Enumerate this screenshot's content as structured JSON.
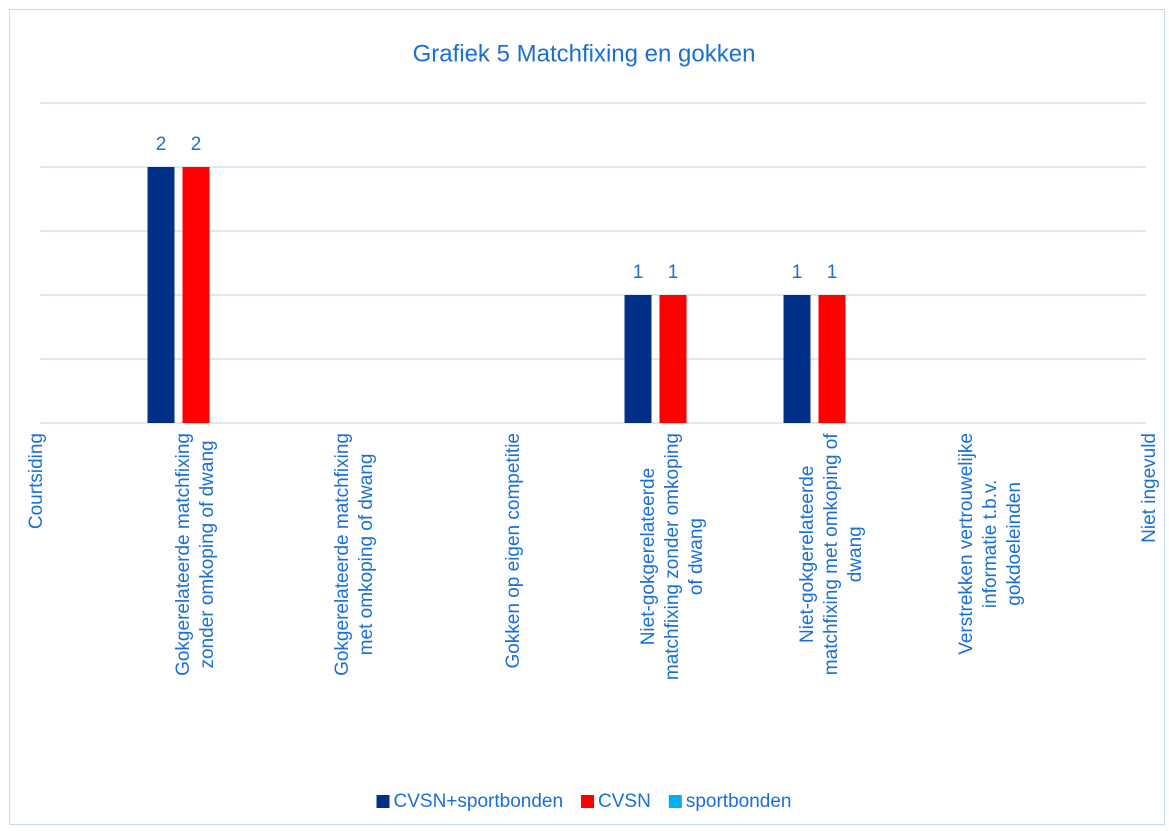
{
  "chart_data": {
    "type": "bar",
    "title": "Grafiek 5 Matchfixing en gokken",
    "categories": [
      "Courtsiding",
      "Gokgerelateerde matchfixing zonder omkoping of dwang",
      "Gokgerelateerde matchfixing met omkoping of dwang",
      "Gokken op eigen competitie",
      "Niet-gokgerelateerde matchfixing zonder omkoping of dwang",
      "Niet-gokgerelateerde matchfixing met omkoping of dwang",
      "Verstrekken vertrouwelijke informatie t.b.v. gokdoeleinden",
      "Niet ingevuld"
    ],
    "series": [
      {
        "name": "CVSN+sportbonden",
        "color": "#003087",
        "values": [
          null,
          2,
          null,
          null,
          1,
          1,
          null,
          null
        ]
      },
      {
        "name": "CVSN",
        "color": "#ff0000",
        "values": [
          null,
          2,
          null,
          null,
          1,
          1,
          null,
          null
        ]
      },
      {
        "name": "sportbonden",
        "color": "#00b0f0",
        "values": [
          null,
          null,
          null,
          null,
          null,
          null,
          null,
          null
        ]
      }
    ],
    "ylim": [
      0,
      2.5
    ],
    "yticks": [
      0,
      0.5,
      1,
      1.5,
      2,
      2.5
    ],
    "grid": true,
    "legend": "bottom"
  }
}
